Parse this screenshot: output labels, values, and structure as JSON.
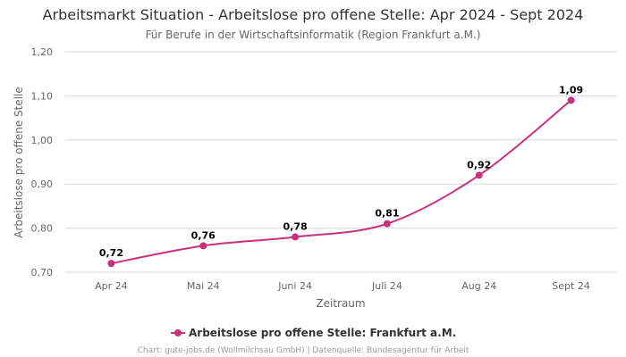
{
  "chart_data": {
    "type": "line",
    "title": "Arbeitsmarkt Situation - Arbeitslose pro offene Stelle: Apr 2024 - Sept 2024",
    "subtitle": "Für Berufe in der Wirtschaftsinformatik (Region Frankfurt a.M.)",
    "xlabel": "Zeitraum",
    "ylabel": "Arbeitslose pro offene Stelle",
    "categories": [
      "Apr 24",
      "Mai 24",
      "Juni 24",
      "Juli 24",
      "Aug 24",
      "Sept 24"
    ],
    "series": [
      {
        "name": "Arbeitslose pro offene Stelle: Frankfurt a.M.",
        "values": [
          0.72,
          0.76,
          0.78,
          0.81,
          0.92,
          1.09
        ],
        "labels": [
          "0,72",
          "0,76",
          "0,78",
          "0,81",
          "0,92",
          "1,09"
        ],
        "color": "#c8317e"
      }
    ],
    "ylim": [
      0.7,
      1.2
    ],
    "yticks": [
      0.7,
      0.8,
      0.9,
      1.0,
      1.1,
      1.2
    ],
    "ytick_labels": [
      "0,70",
      "0,80",
      "0,90",
      "1,00",
      "1,10",
      "1,20"
    ],
    "grid": true,
    "legend_position": "bottom-center",
    "gridline_color": "#d8d8d8"
  },
  "credits": "Chart: gute-jobs.de (Wollmilchsau GmbH) | Datenquelle: Bundesagentur für Arbeit"
}
